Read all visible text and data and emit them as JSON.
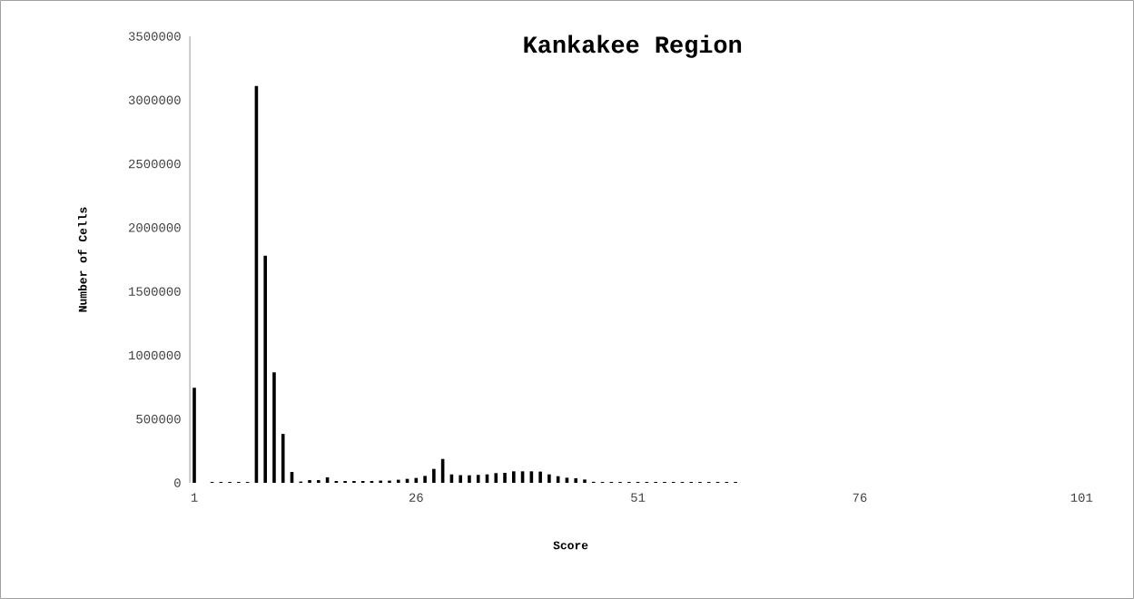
{
  "chart_data": {
    "type": "bar",
    "title": "Kankakee Region",
    "xlabel": "Score",
    "ylabel": "Number of Cells",
    "categories": [
      "1",
      null,
      null,
      null,
      null,
      null,
      null,
      null,
      null,
      null,
      null,
      null,
      null,
      null,
      null,
      null,
      null,
      null,
      null,
      null,
      null,
      null,
      null,
      null,
      null,
      "26",
      null,
      null,
      null,
      null,
      null,
      null,
      null,
      null,
      null,
      null,
      null,
      null,
      null,
      null,
      null,
      null,
      null,
      null,
      null,
      null,
      null,
      null,
      null,
      null,
      "51",
      null,
      null,
      null,
      null,
      null,
      null,
      null,
      null,
      null,
      null,
      null,
      null,
      null,
      null,
      null,
      null,
      null,
      null,
      null,
      null,
      null,
      null,
      null,
      null,
      "76",
      null,
      null,
      null,
      null,
      null,
      null,
      null,
      null,
      null,
      null,
      null,
      null,
      null,
      null,
      null,
      null,
      null,
      null,
      null,
      null,
      null,
      null,
      null,
      null,
      "101"
    ],
    "values": [
      745000,
      0,
      7000,
      7000,
      7000,
      7000,
      7000,
      3110000,
      1780000,
      866000,
      383000,
      85000,
      10000,
      21000,
      21000,
      43000,
      14000,
      14000,
      14000,
      14000,
      14000,
      17000,
      17000,
      24000,
      31000,
      38000,
      54000,
      109000,
      187000,
      66000,
      60000,
      59000,
      62000,
      66000,
      76000,
      78000,
      90000,
      90000,
      90000,
      88000,
      66000,
      52000,
      40000,
      36000,
      26000,
      8000,
      7000,
      7000,
      7000,
      7000,
      7000,
      7000,
      7000,
      7000,
      7000,
      7000,
      7000,
      7000,
      7000,
      7000,
      7000,
      7000,
      0,
      0,
      0,
      0,
      0,
      0,
      0,
      0,
      0,
      0,
      0,
      0,
      0,
      0,
      0,
      0,
      0,
      0,
      0,
      0,
      0,
      0,
      0,
      0,
      0,
      0,
      0,
      0,
      0,
      0,
      0,
      0,
      0,
      0,
      0,
      0,
      0,
      0,
      0
    ],
    "color": "#000000",
    "ylim": [
      0,
      3500000
    ],
    "yticks": [
      0,
      500000,
      1000000,
      1500000,
      2000000,
      2500000,
      3000000,
      3500000
    ]
  }
}
